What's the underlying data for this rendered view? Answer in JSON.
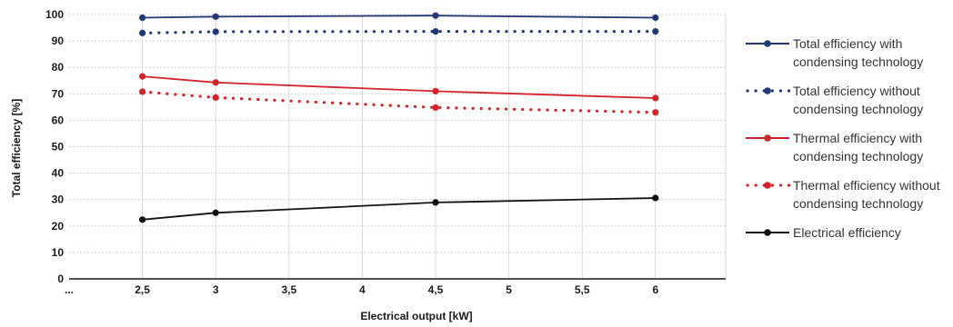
{
  "chart_data": {
    "type": "line",
    "xlabel": "Electrical output [kW]",
    "ylabel": "Total efficiency [%]",
    "ylim": [
      0,
      100
    ],
    "yticks": [
      "0",
      "10",
      "20",
      "30",
      "40",
      "50",
      "60",
      "70",
      "80",
      "90",
      "100"
    ],
    "xticks": [
      "...",
      "2,5",
      "3",
      "3,5",
      "4",
      "4,5",
      "5",
      "5,5",
      "6"
    ],
    "grid": true,
    "legend_position": "right",
    "series": [
      {
        "name": "Total efficiency with condensing technology",
        "name_lines": [
          "Total efficiency with",
          "condensing technology"
        ],
        "color": "#233775",
        "style": "solid",
        "x": [
          2.5,
          3,
          4.5,
          6
        ],
        "values": [
          98.8,
          99.2,
          99.6,
          98.8
        ]
      },
      {
        "name": "Total efficiency without condensing technology",
        "name_lines": [
          "Total efficiency without",
          "condensing technology"
        ],
        "color": "#233775",
        "style": "dotted",
        "x": [
          2.5,
          3,
          4.5,
          6
        ],
        "values": [
          93,
          93.5,
          93.6,
          93.6
        ]
      },
      {
        "name": "Thermal efficiency with condensing technology",
        "name_lines": [
          "Thermal efficiency with",
          "condensing technology"
        ],
        "color": "#d2232a",
        "style": "solid",
        "x": [
          2.5,
          3,
          4.5,
          6
        ],
        "values": [
          76.6,
          74.3,
          71,
          68.4
        ]
      },
      {
        "name": "Thermal efficiency without condensing technology",
        "name_lines": [
          "Thermal efficiency without",
          "condensing technology"
        ],
        "color": "#d2232a",
        "style": "dotted",
        "x": [
          2.5,
          3,
          4.5,
          6
        ],
        "values": [
          70.8,
          68.6,
          64.8,
          63
        ]
      },
      {
        "name": "Electrical efficiency",
        "name_lines": [
          "Electrical efficiency"
        ],
        "color": "#111111",
        "style": "solid",
        "x": [
          2.5,
          3,
          4.5,
          6
        ],
        "values": [
          22.4,
          25,
          28.9,
          30.6
        ]
      }
    ]
  }
}
